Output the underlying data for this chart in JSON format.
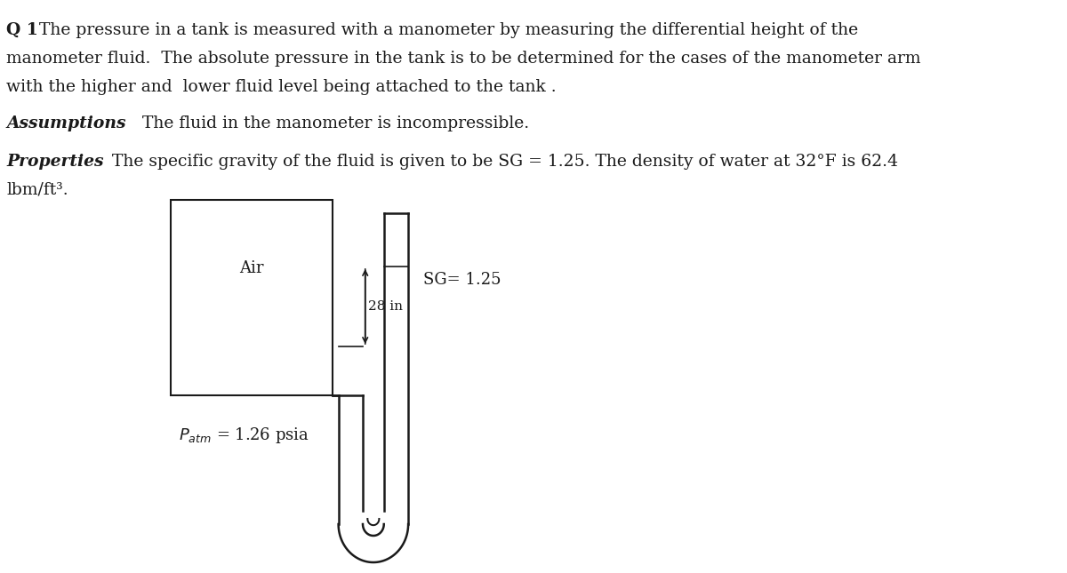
{
  "bg_color": "#ffffff",
  "text_color": "#1a1a1a",
  "title_bold": "Q 1",
  "title_text": " The pressure in a tank is measured with a manometer by measuring the differential height of the\nmanometer fluid.  The absolute pressure in the tank is to be determined for the cases of the manometer arm\nwith the higher and  lower fluid level being attached to the tank .",
  "assumptions_label": "Assumptions",
  "assumptions_text": "  The fluid in the manometer is incompressible.",
  "properties_label": "Properties",
  "properties_text": " The specific gravity of the fluid is given to be SG = 1.25. The density of water at 32°F is 62.4\nlbm/ft³.",
  "diagram_air_label": "Air",
  "diagram_sg_label": "SG= 1.25",
  "diagram_h_label": "28 in",
  "diagram_patm_label": "P_atm = 1.26 psia",
  "line_color": "#1a1a1a",
  "font_size_body": 13.5,
  "font_size_label": 13,
  "font_size_small": 11
}
